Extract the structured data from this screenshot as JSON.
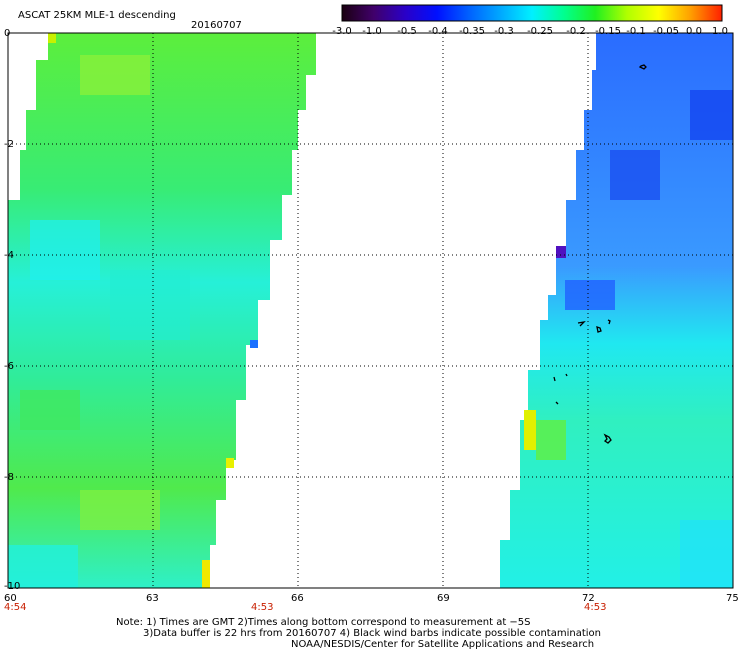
{
  "header": {
    "title": "ASCAT 25KM MLE-1 descending",
    "date": "20160707"
  },
  "colorbar": {
    "labels": [
      "-3.0",
      "-1.0",
      "-0.5",
      "-0.4",
      "-0.35",
      "-0.3",
      "-0.25",
      "-0.2",
      "-0.15",
      "-0.1",
      "-0.05",
      "0.0",
      "1.0"
    ],
    "colors": [
      "#1a0010",
      "#40006a",
      "#2a00c8",
      "#0010ff",
      "#0060ff",
      "#00a8ff",
      "#00f0ff",
      "#00ff90",
      "#20f020",
      "#b0ff00",
      "#ffff00",
      "#ffa000",
      "#ff2000"
    ]
  },
  "map": {
    "lon_range": [
      60,
      75
    ],
    "lat_range": [
      -10,
      0
    ],
    "x_ticks": [
      "60",
      "63",
      "66",
      "69",
      "72",
      "75"
    ],
    "y_ticks": [
      "0",
      "-2",
      "-4",
      "-6",
      "-8",
      "-10"
    ],
    "times": [
      "4:54",
      "4:53",
      "4:53"
    ],
    "time_lons": [
      60,
      65,
      72
    ],
    "time_color": "#c81e00",
    "left_swath_color": "#2ee870",
    "right_swath_color": "#2a7cff"
  },
  "notes": {
    "line1": "Note: 1) Times are GMT 2)Times along bottom correspond to measurement at −5S",
    "line2": "3)Data buffer is 22 hrs from 20160707 4) Black wind barbs indicate possible contamination",
    "line3": "NOAA/NESDIS/Center for Satellite Applications and Research"
  }
}
